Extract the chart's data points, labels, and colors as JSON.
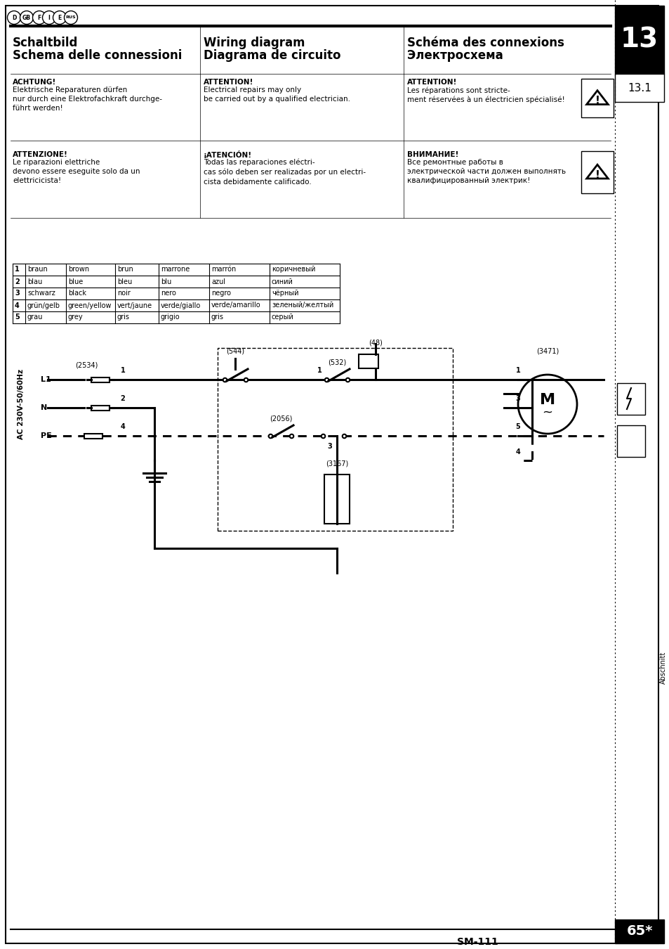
{
  "page_bg": "#ffffff",
  "title_line1_col1": "Schaltbild",
  "title_line2_col1": "Schema delle connessioni",
  "title_line1_col2": "Wiring diagram",
  "title_line2_col2": "Diagrama de circuito",
  "title_line1_col3": "Schéma des connexions",
  "title_line2_col3": "Электросхема",
  "chapter_num": "13",
  "section_num": "13.1",
  "flags": [
    "D",
    "GB",
    "F",
    "I",
    "E",
    "RUS"
  ],
  "w1c1_bold": "ACHTUNG!",
  "w1c1_text": " Elektrische Reparaturen dürfen\nnur durch eine Elektrofachkraft durchge-\nführt werden!",
  "w1c2_bold": "ATTENTION!",
  "w1c2_text": " Electrical repairs may only\nbe carried out by a qualified electrician.",
  "w1c3_bold": "ATTENTION!",
  "w1c3_text": " Les réparations sont stricte-\nment réservées à un électricien spécialisé!",
  "w2c1_bold": "ATTENZIONE!",
  "w2c1_text": " Le riparazioni elettriche\ndevono essere eseguite solo da un\nelettricicista!",
  "w2c2_bold": "¡ATENCIÓN!",
  "w2c2_text": " Todas las reparaciones eléctri-\ncas sólo deben ser realizadas por un electri-\ncista debidamente calificado.",
  "w2c3_bold": "ВНИМАНИЕ!",
  "w2c3_text": " Все ремонтные работы в\nэлектрической части должен выполнять\nквалифицированный электрик!",
  "table_rows": [
    [
      "1",
      "braun",
      "brown",
      "brun",
      "marrone",
      "marrón",
      "коричневый"
    ],
    [
      "2",
      "blau",
      "blue",
      "bleu",
      "blu",
      "azul",
      "синий"
    ],
    [
      "3",
      "schwarz",
      "black",
      "noir",
      "nero",
      "negro",
      "чёрный"
    ],
    [
      "4",
      "grün/gelb",
      "green/yellow",
      "vert/jaune",
      "verde/giallo",
      "verde/amarillo",
      "зеленый/желтый"
    ],
    [
      "5",
      "grau",
      "grey",
      "gris",
      "grigio",
      "gris",
      "серый"
    ]
  ],
  "footer_model": "SM-111",
  "footer_page": "65*",
  "abschnitt_text": "Abschnitt",
  "ac_label": "AC 230V-50/60Hz"
}
